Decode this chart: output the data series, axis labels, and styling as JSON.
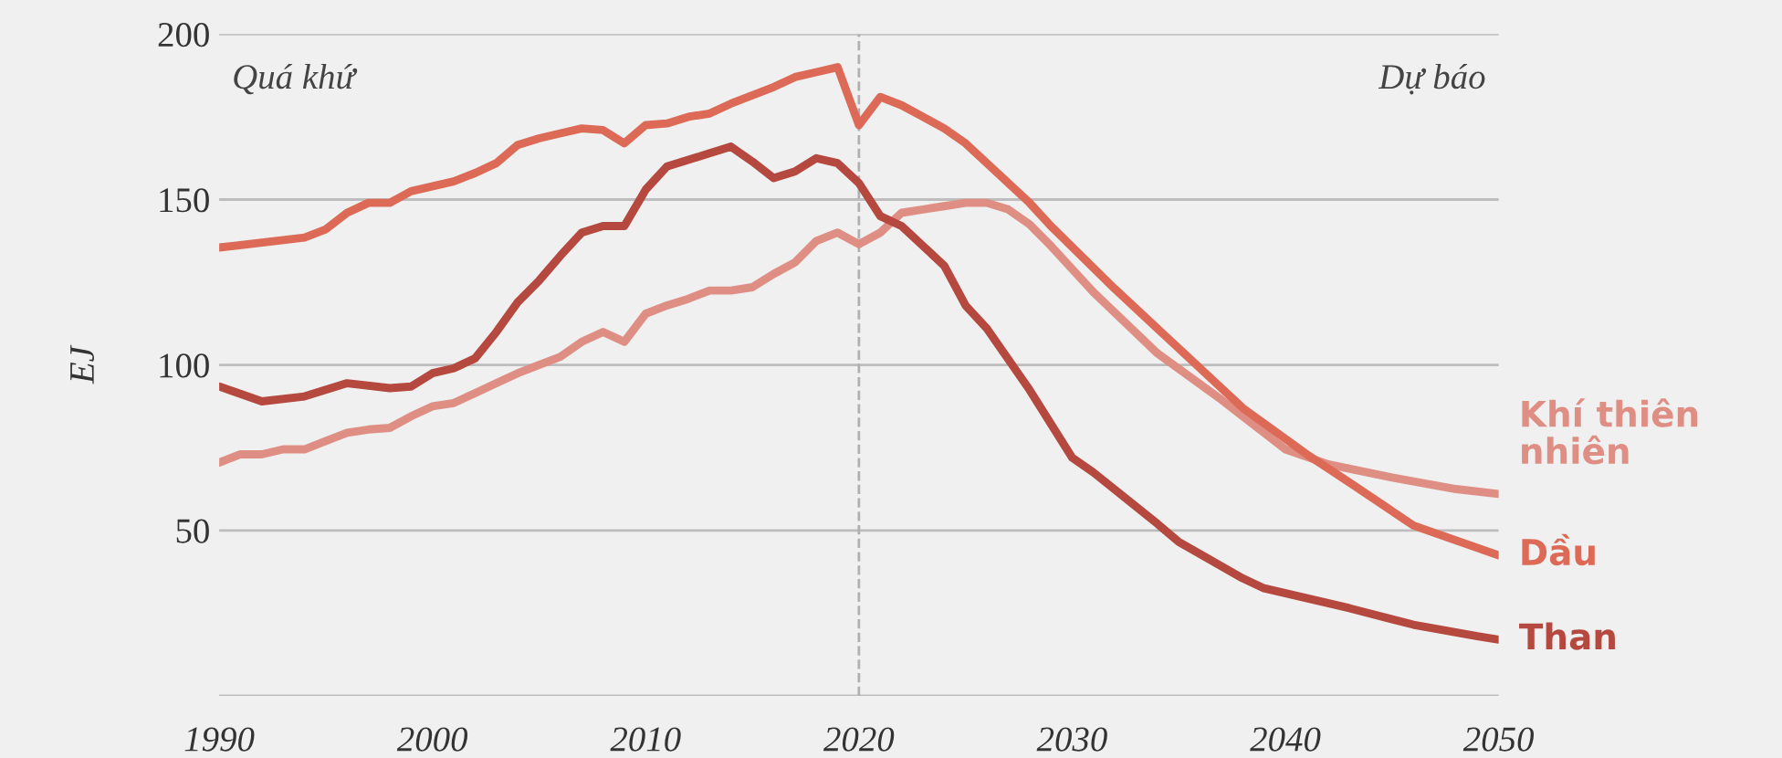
{
  "chart_data": {
    "type": "line",
    "ylabel": "EJ",
    "xlim": [
      1990,
      2050
    ],
    "xticks": [
      1990,
      2000,
      2010,
      2020,
      2030,
      2040,
      2050
    ],
    "ylim": [
      0,
      200
    ],
    "yticks": [
      {
        "value": 0,
        "label": null
      },
      50,
      100,
      150,
      200
    ],
    "grid": "y",
    "line_style": "solid",
    "marker": "none",
    "annotations": [
      "Quá khứ",
      "Dự báo"
    ],
    "ref_lines": [
      {
        "axis": "x",
        "value": 2020,
        "color": "#b0b0b0",
        "line_style": "dashed"
      }
    ],
    "series": [
      {
        "name": "Khí thiên nhiên",
        "color": "#df8e84",
        "x": [
          1990,
          1991,
          1992,
          1993,
          1994,
          1995,
          1996,
          1997,
          1998,
          1999,
          2000,
          2001,
          2002,
          2003,
          2004,
          2005,
          2006,
          2007,
          2008,
          2009,
          2010,
          2011,
          2012,
          2013,
          2014,
          2015,
          2016,
          2017,
          2018,
          2019,
          2020,
          2021,
          2022,
          2023,
          2024,
          2025,
          2026,
          2027,
          2028,
          2029,
          2031,
          2034,
          2037,
          2040,
          2042,
          2045,
          2048,
          2050
        ],
        "values": [
          70.5,
          73,
          73,
          74.5,
          74.5,
          77,
          79.5,
          80.5,
          81,
          84.5,
          87.5,
          88.5,
          91.5,
          94.5,
          97.5,
          100,
          102.5,
          107,
          110,
          107,
          115.5,
          118,
          120,
          122.5,
          122.5,
          123.5,
          127.5,
          131,
          137.5,
          140,
          136.5,
          140,
          146,
          147,
          148,
          149,
          149,
          147,
          142.5,
          136,
          122,
          103.5,
          89.5,
          74.5,
          70,
          66,
          62.5,
          61
        ]
      },
      {
        "name": "Dầu",
        "color": "#dc6a56",
        "x": [
          1990,
          1994,
          1995,
          1996,
          1997,
          1998,
          1999,
          2001,
          2002,
          2003,
          2004,
          2005,
          2006,
          2007,
          2008,
          2009,
          2010,
          2011,
          2012,
          2013,
          2014,
          2015,
          2016,
          2017,
          2018,
          2019,
          2020,
          2021,
          2022,
          2023,
          2024,
          2025,
          2028,
          2029,
          2032,
          2035,
          2038,
          2041,
          2043,
          2046,
          2050
        ],
        "values": [
          135.5,
          138.5,
          141,
          146,
          149,
          149,
          152.5,
          155.5,
          158,
          161,
          166.5,
          168.5,
          170,
          171.5,
          171,
          167,
          172.5,
          173,
          175,
          176,
          179,
          181.5,
          184,
          187,
          188.5,
          190,
          172.5,
          181,
          178.5,
          175,
          171.5,
          167,
          149,
          142,
          123,
          105,
          87,
          73,
          64.5,
          51.5,
          42.5
        ]
      },
      {
        "name": "Than",
        "color": "#b5483f",
        "x": [
          1990,
          1992,
          1994,
          1996,
          1998,
          1999,
          2000,
          2001,
          2002,
          2003,
          2004,
          2005,
          2006,
          2007,
          2008,
          2009,
          2010,
          2011,
          2012,
          2013,
          2014,
          2015,
          2016,
          2017,
          2018,
          2019,
          2020,
          2021,
          2022,
          2024,
          2025,
          2026,
          2028,
          2030,
          2031,
          2034,
          2035,
          2038,
          2039,
          2043,
          2046,
          2049,
          2050
        ],
        "values": [
          93.5,
          89,
          90.5,
          94.5,
          93,
          93.5,
          97.5,
          99,
          102,
          110,
          119,
          125.5,
          133,
          140,
          142,
          142,
          153,
          160,
          162,
          164,
          166,
          161.5,
          156.5,
          158.5,
          162.5,
          161,
          155,
          145,
          142,
          130,
          118,
          111,
          92.5,
          72,
          67.5,
          52,
          46.5,
          35.5,
          32.5,
          26.5,
          21.5,
          18,
          17
        ]
      }
    ]
  }
}
